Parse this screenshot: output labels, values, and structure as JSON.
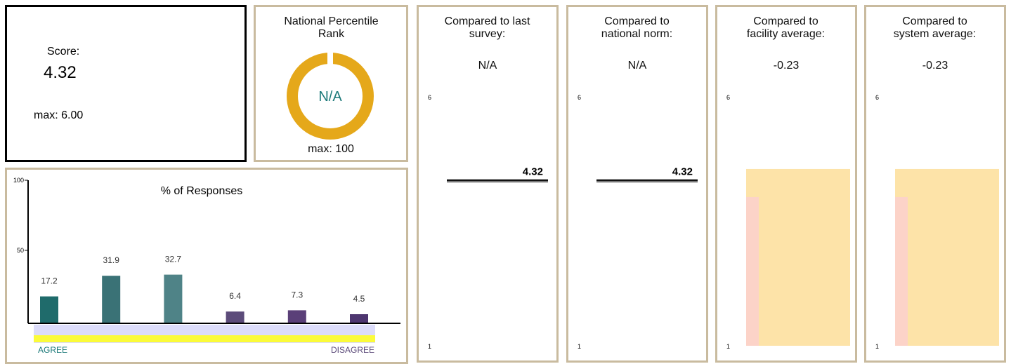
{
  "score": {
    "label": "Score:",
    "value": "4.32",
    "max": "max: 6.00"
  },
  "percentile": {
    "title": "National Percentile Rank",
    "value": "N/A",
    "max": "max: 100"
  },
  "comparisons": [
    {
      "title": "Compared to last survey:",
      "value": "N/A",
      "ylim": [
        1,
        6
      ],
      "yticks": [
        1,
        6
      ],
      "marker": 4.32,
      "marker_label": "4.32",
      "type": "line"
    },
    {
      "title": "Compared to national norm:",
      "value": "N/A",
      "ylim": [
        1,
        6
      ],
      "yticks": [
        1,
        6
      ],
      "marker": 4.32,
      "marker_label": "4.32",
      "type": "line"
    },
    {
      "title": "Compared to facility average:",
      "value": "-0.23",
      "ylim": [
        1,
        6
      ],
      "yticks": [
        1,
        6
      ],
      "marker": 4.55,
      "type": "bar"
    },
    {
      "title": "Compared to system average:",
      "value": "-0.23",
      "ylim": [
        1,
        6
      ],
      "yticks": [
        1,
        6
      ],
      "marker": 4.55,
      "type": "bar"
    }
  ],
  "chart_data": {
    "type": "bar",
    "title": "% of Responses",
    "categories": [
      null,
      null,
      null,
      null,
      null,
      null
    ],
    "values": [
      17.2,
      31.9,
      32.7,
      6.4,
      7.3,
      4.5
    ],
    "colors": [
      "#1f6b6b",
      "#3a7276",
      "#4f8387",
      "#5c4b7a",
      "#5a3f78",
      "#4e3670"
    ],
    "ylim": [
      0,
      100
    ],
    "yticks": [
      50,
      100
    ],
    "left_label": "AGREE",
    "right_label": "DISAGREE"
  }
}
